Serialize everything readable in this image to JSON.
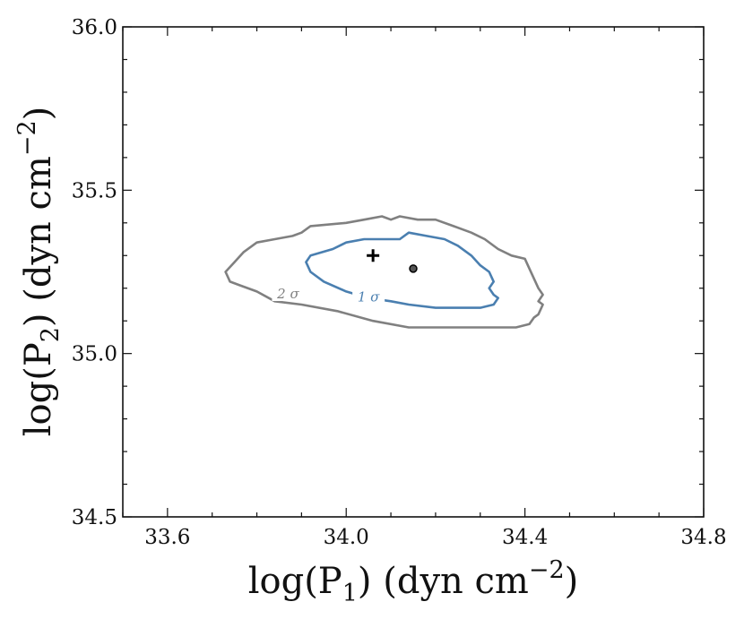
{
  "chart_data": {
    "type": "contour",
    "xlabel": {
      "prefix": "log(P",
      "subscript": "1",
      "middle": ") (dyn cm",
      "superscript": "−2",
      "suffix": ")"
    },
    "ylabel": {
      "prefix": "log(P",
      "subscript": "2",
      "middle": ") (dyn cm",
      "superscript": "−2",
      "suffix": ")"
    },
    "xlim": [
      33.5,
      34.8
    ],
    "ylim": [
      34.5,
      36.0
    ],
    "xticks": [
      {
        "value": 33.6,
        "label": "33.6"
      },
      {
        "value": 34.0,
        "label": "34.0"
      },
      {
        "value": 34.4,
        "label": "34.4"
      },
      {
        "value": 34.8,
        "label": "34.8"
      }
    ],
    "yticks": [
      {
        "value": 34.5,
        "label": "34.5"
      },
      {
        "value": 35.0,
        "label": "35.0"
      },
      {
        "value": 35.5,
        "label": "35.5"
      },
      {
        "value": 36.0,
        "label": "36.0"
      }
    ],
    "x_minor_step": 0.1,
    "y_minor_step": 0.1,
    "grid": false,
    "legend": "none",
    "contours": [
      {
        "label": "2 σ",
        "color": "#808080",
        "label_position": [
          33.87,
          35.18
        ],
        "points": [
          [
            33.74,
            35.22
          ],
          [
            33.73,
            35.25
          ],
          [
            33.75,
            35.28
          ],
          [
            33.77,
            35.31
          ],
          [
            33.8,
            35.34
          ],
          [
            33.84,
            35.35
          ],
          [
            33.88,
            35.36
          ],
          [
            33.9,
            35.37
          ],
          [
            33.92,
            35.39
          ],
          [
            34.0,
            35.4
          ],
          [
            34.04,
            35.41
          ],
          [
            34.08,
            35.42
          ],
          [
            34.1,
            35.41
          ],
          [
            34.12,
            35.42
          ],
          [
            34.16,
            35.41
          ],
          [
            34.2,
            35.41
          ],
          [
            34.24,
            35.39
          ],
          [
            34.28,
            35.37
          ],
          [
            34.31,
            35.35
          ],
          [
            34.34,
            35.32
          ],
          [
            34.37,
            35.3
          ],
          [
            34.4,
            35.29
          ],
          [
            34.41,
            35.26
          ],
          [
            34.42,
            35.23
          ],
          [
            34.43,
            35.2
          ],
          [
            34.44,
            35.18
          ],
          [
            34.43,
            35.16
          ],
          [
            34.44,
            35.15
          ],
          [
            34.43,
            35.12
          ],
          [
            34.42,
            35.11
          ],
          [
            34.41,
            35.09
          ],
          [
            34.38,
            35.08
          ],
          [
            34.3,
            35.08
          ],
          [
            34.22,
            35.08
          ],
          [
            34.14,
            35.08
          ],
          [
            34.06,
            35.1
          ],
          [
            33.98,
            35.13
          ],
          [
            33.9,
            35.15
          ],
          [
            33.84,
            35.16
          ],
          [
            33.8,
            35.19
          ],
          [
            33.76,
            35.21
          ],
          [
            33.74,
            35.22
          ]
        ]
      },
      {
        "label": "1 σ",
        "color": "#4a7fb0",
        "label_position": [
          34.05,
          35.17
        ],
        "points": [
          [
            33.91,
            35.28
          ],
          [
            33.92,
            35.3
          ],
          [
            33.97,
            35.32
          ],
          [
            34.0,
            35.34
          ],
          [
            34.04,
            35.35
          ],
          [
            34.08,
            35.35
          ],
          [
            34.12,
            35.35
          ],
          [
            34.14,
            35.37
          ],
          [
            34.18,
            35.36
          ],
          [
            34.22,
            35.35
          ],
          [
            34.25,
            35.33
          ],
          [
            34.28,
            35.3
          ],
          [
            34.3,
            35.27
          ],
          [
            34.32,
            35.25
          ],
          [
            34.33,
            35.22
          ],
          [
            34.32,
            35.2
          ],
          [
            34.33,
            35.18
          ],
          [
            34.34,
            35.17
          ],
          [
            34.33,
            35.15
          ],
          [
            34.3,
            35.14
          ],
          [
            34.25,
            35.14
          ],
          [
            34.2,
            35.14
          ],
          [
            34.14,
            35.15
          ],
          [
            34.1,
            35.16
          ],
          [
            34.05,
            35.17
          ],
          [
            34.0,
            35.19
          ],
          [
            33.95,
            35.22
          ],
          [
            33.92,
            35.25
          ],
          [
            33.91,
            35.28
          ]
        ]
      }
    ],
    "markers": [
      {
        "shape": "plus",
        "x": 34.06,
        "y": 35.3,
        "color": "#000000"
      },
      {
        "shape": "dot",
        "x": 34.15,
        "y": 35.26,
        "color": "#000000"
      }
    ]
  }
}
